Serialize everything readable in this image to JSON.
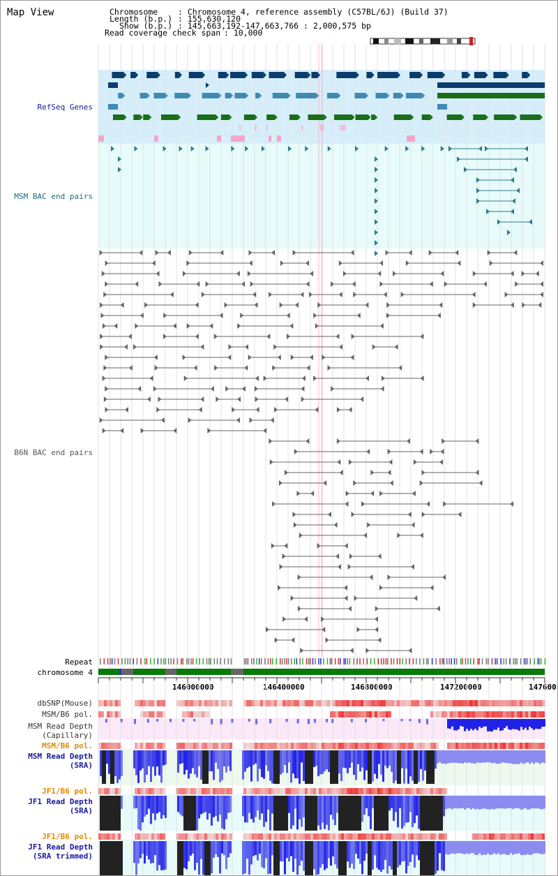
{
  "title": "Map View",
  "header": {
    "chromosome_label": "Chromosome",
    "chromosome_value": ": Chromosome 4, reference assembly (C57BL/6J) (Build 37)",
    "length_label": "Length (b.p.)",
    "length_value": ": 155,630,120",
    "show_label": "Show (b.p.)",
    "show_value": ": 145,663,192-147,663,766 : 2,000,575 bp",
    "coverage_label": "Read coverage check span",
    "coverage_value": ": 10,000"
  },
  "tracks": {
    "refseq": "RefSeq Genes",
    "msm_bac": "MSM BAC end pairs",
    "b6n_bac": "B6N BAC end pairs",
    "repeat": "Repeat",
    "chromosome": "chromosome 4",
    "dbsnp": "dbSNP(Mouse)",
    "msm_b6_pol_1": "MSM/B6 pol.",
    "msm_depth_cap_1": "MSM Read Depth",
    "msm_depth_cap_2": "(Capillary)",
    "msm_b6_pol_2": "MSM/B6 pol.",
    "msm_depth_sra_1": "MSM Read Depth",
    "msm_depth_sra_2": "(SRA)",
    "jf1_b6_pol_1": "JF1/B6 pol.",
    "jf1_depth_sra_1": "JF1 Read Depth",
    "jf1_depth_sra_2": "(SRA)",
    "jf1_b6_pol_2": "JF1/B6 pol.",
    "jf1_depth_trim_1": "JF1 Read Depth",
    "jf1_depth_trim_2": "(SRA trimmed)"
  },
  "axis": {
    "ticks": [
      "146000000",
      "146400000",
      "146800000",
      "147200000",
      "147600"
    ]
  },
  "colors": {
    "refseq_bg": "#d6eefa",
    "msm_bac_bg": "#e6fbfa",
    "gene_dark": "#0b3c6e",
    "gene_mid": "#3d8bb5",
    "gene_green": "#1a6e1a",
    "gene_pink": "#f4a6c8",
    "bac_msm": "#2d7a8c",
    "bac_b6n": "#555555",
    "label_blue": "#1a1a9c",
    "label_teal": "#1f6b7a",
    "label_grey": "#555555",
    "label_orange": "#e08a00",
    "chrom_green": "#0a7a0a",
    "depth_blue": "#2222e6",
    "depth_black": "#222222"
  }
}
